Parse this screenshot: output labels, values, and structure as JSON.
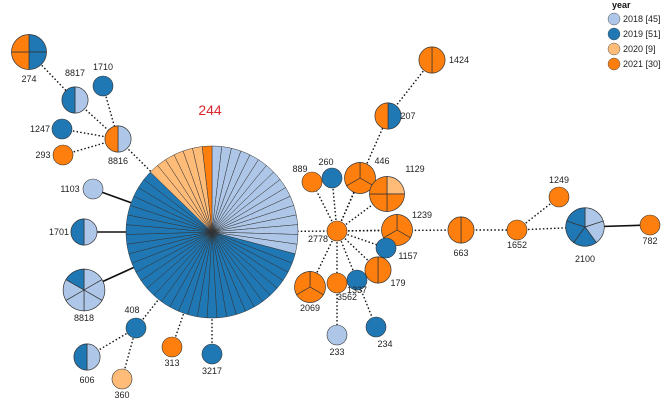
{
  "legend": {
    "title": "year",
    "items": [
      {
        "key": "2018",
        "label": "2018 [45]",
        "color": "#aec7e8"
      },
      {
        "key": "2019",
        "label": "2019 [51]",
        "color": "#1f77b4"
      },
      {
        "key": "2020",
        "label": "2020 [9]",
        "color": "#ffbb78"
      },
      {
        "key": "2021",
        "label": "2021 [30]",
        "color": "#ff7f0e"
      }
    ]
  },
  "hub_label": "244",
  "nodes": [
    {
      "id": "274",
      "label": "274",
      "counts": {
        "2018": 0,
        "2019": 2,
        "2020": 0,
        "2021": 2
      }
    },
    {
      "id": "8817",
      "label": "8817",
      "counts": {
        "2018": 1,
        "2019": 1,
        "2020": 0,
        "2021": 0
      }
    },
    {
      "id": "1710",
      "label": "1710",
      "counts": {
        "2018": 0,
        "2019": 1,
        "2020": 0,
        "2021": 0
      }
    },
    {
      "id": "1247",
      "label": "1247",
      "counts": {
        "2018": 0,
        "2019": 1,
        "2020": 0,
        "2021": 0
      }
    },
    {
      "id": "293",
      "label": "293",
      "counts": {
        "2018": 0,
        "2019": 0,
        "2020": 0,
        "2021": 1
      }
    },
    {
      "id": "8816",
      "label": "8816",
      "counts": {
        "2018": 1,
        "2019": 0,
        "2020": 0,
        "2021": 1
      }
    },
    {
      "id": "244",
      "label": "",
      "counts": {
        "2018": 16,
        "2019": 32,
        "2020": 6,
        "2021": 1
      }
    },
    {
      "id": "1103",
      "label": "1103",
      "counts": {
        "2018": 1,
        "2019": 0,
        "2020": 0,
        "2021": 0
      }
    },
    {
      "id": "1701",
      "label": "1701",
      "counts": {
        "2018": 1,
        "2019": 1,
        "2020": 0,
        "2021": 0
      }
    },
    {
      "id": "8818",
      "label": "8818",
      "counts": {
        "2018": 5,
        "2019": 1,
        "2020": 0,
        "2021": 0
      }
    },
    {
      "id": "408",
      "label": "408",
      "counts": {
        "2018": 0,
        "2019": 1,
        "2020": 0,
        "2021": 0
      }
    },
    {
      "id": "606",
      "label": "606",
      "counts": {
        "2018": 1,
        "2019": 1,
        "2020": 0,
        "2021": 0
      }
    },
    {
      "id": "360",
      "label": "360",
      "counts": {
        "2018": 0,
        "2019": 0,
        "2020": 1,
        "2021": 0
      }
    },
    {
      "id": "313",
      "label": "313",
      "counts": {
        "2018": 0,
        "2019": 0,
        "2020": 0,
        "2021": 1
      }
    },
    {
      "id": "3217",
      "label": "3217",
      "counts": {
        "2018": 0,
        "2019": 1,
        "2020": 0,
        "2021": 0
      }
    },
    {
      "id": "2778",
      "label": "2778",
      "counts": {
        "2018": 0,
        "2019": 0,
        "2020": 0,
        "2021": 1
      }
    },
    {
      "id": "889",
      "label": "889",
      "counts": {
        "2018": 0,
        "2019": 0,
        "2020": 0,
        "2021": 1
      }
    },
    {
      "id": "260",
      "label": "260",
      "counts": {
        "2018": 0,
        "2019": 1,
        "2020": 0,
        "2021": 0
      }
    },
    {
      "id": "446",
      "label": "446",
      "counts": {
        "2018": 0,
        "2019": 0,
        "2020": 0,
        "2021": 3
      }
    },
    {
      "id": "1129",
      "label": "1129",
      "counts": {
        "2018": 0,
        "2019": 0,
        "2020": 1,
        "2021": 3
      }
    },
    {
      "id": "1424",
      "label": "1424",
      "counts": {
        "2018": 0,
        "2019": 0,
        "2020": 0,
        "2021": 2
      }
    },
    {
      "id": "207",
      "label": "207",
      "counts": {
        "2018": 0,
        "2019": 1,
        "2020": 0,
        "2021": 1
      }
    },
    {
      "id": "1239",
      "label": "1239",
      "counts": {
        "2018": 0,
        "2019": 0,
        "2020": 0,
        "2021": 3
      }
    },
    {
      "id": "1157",
      "label": "1157",
      "counts": {
        "2018": 0,
        "2019": 1,
        "2020": 0,
        "2021": 0
      }
    },
    {
      "id": "179",
      "label": "179",
      "counts": {
        "2018": 0,
        "2019": 0,
        "2020": 0,
        "2021": 2
      }
    },
    {
      "id": "2069",
      "label": "2069",
      "counts": {
        "2018": 0,
        "2019": 0,
        "2020": 0,
        "2021": 3
      }
    },
    {
      "id": "3562",
      "label": "3562",
      "counts": {
        "2018": 0,
        "2019": 0,
        "2020": 0,
        "2021": 1
      }
    },
    {
      "id": "1337",
      "label": "1337",
      "counts": {
        "2018": 0,
        "2019": 1,
        "2020": 0,
        "2021": 0
      }
    },
    {
      "id": "233",
      "label": "233",
      "counts": {
        "2018": 1,
        "2019": 0,
        "2020": 0,
        "2021": 0
      }
    },
    {
      "id": "234",
      "label": "234",
      "counts": {
        "2018": 0,
        "2019": 1,
        "2020": 0,
        "2021": 0
      }
    },
    {
      "id": "663",
      "label": "663",
      "counts": {
        "2018": 0,
        "2019": 0,
        "2020": 0,
        "2021": 2
      }
    },
    {
      "id": "1652",
      "label": "1652",
      "counts": {
        "2018": 0,
        "2019": 0,
        "2020": 0,
        "2021": 1
      }
    },
    {
      "id": "1249",
      "label": "1249",
      "counts": {
        "2018": 0,
        "2019": 0,
        "2020": 0,
        "2021": 1
      }
    },
    {
      "id": "2100",
      "label": "2100",
      "counts": {
        "2018": 2,
        "2019": 3,
        "2020": 0,
        "2021": 0
      }
    },
    {
      "id": "782",
      "label": "782",
      "counts": {
        "2018": 0,
        "2019": 0,
        "2020": 0,
        "2021": 1
      }
    }
  ],
  "edges": [
    {
      "a": "274",
      "b": "8817",
      "style": "dotted"
    },
    {
      "a": "8817",
      "b": "8816",
      "style": "dotted"
    },
    {
      "a": "1710",
      "b": "8816",
      "style": "dotted"
    },
    {
      "a": "1247",
      "b": "8816",
      "style": "dotted"
    },
    {
      "a": "293",
      "b": "8816",
      "style": "dotted"
    },
    {
      "a": "8816",
      "b": "244",
      "style": "dotted"
    },
    {
      "a": "1103",
      "b": "244",
      "style": "solid"
    },
    {
      "a": "1701",
      "b": "244",
      "style": "solid"
    },
    {
      "a": "8818",
      "b": "244",
      "style": "solid"
    },
    {
      "a": "408",
      "b": "244",
      "style": "dotted"
    },
    {
      "a": "606",
      "b": "408",
      "style": "dotted"
    },
    {
      "a": "360",
      "b": "408",
      "style": "dotted"
    },
    {
      "a": "313",
      "b": "244",
      "style": "dotted"
    },
    {
      "a": "3217",
      "b": "244",
      "style": "dotted"
    },
    {
      "a": "244",
      "b": "2778",
      "style": "dotted"
    },
    {
      "a": "2778",
      "b": "889",
      "style": "dotted"
    },
    {
      "a": "2778",
      "b": "260",
      "style": "dotted"
    },
    {
      "a": "2778",
      "b": "446",
      "style": "dotted"
    },
    {
      "a": "2778",
      "b": "1129",
      "style": "dotted"
    },
    {
      "a": "2778",
      "b": "207",
      "style": "dotted"
    },
    {
      "a": "207",
      "b": "1424",
      "style": "dotted"
    },
    {
      "a": "2778",
      "b": "1239",
      "style": "dotted"
    },
    {
      "a": "2778",
      "b": "1157",
      "style": "dotted"
    },
    {
      "a": "2778",
      "b": "179",
      "style": "dotted"
    },
    {
      "a": "2778",
      "b": "2069",
      "style": "dotted"
    },
    {
      "a": "2778",
      "b": "3562",
      "style": "dotted"
    },
    {
      "a": "2778",
      "b": "1337",
      "style": "dotted"
    },
    {
      "a": "1337",
      "b": "234",
      "style": "dotted"
    },
    {
      "a": "3562",
      "b": "233",
      "style": "dotted"
    },
    {
      "a": "2778",
      "b": "663",
      "style": "dotted"
    },
    {
      "a": "663",
      "b": "1652",
      "style": "dotted"
    },
    {
      "a": "1652",
      "b": "1249",
      "style": "dotted"
    },
    {
      "a": "1652",
      "b": "2100",
      "style": "dotted"
    },
    {
      "a": "2100",
      "b": "782",
      "style": "solid"
    }
  ]
}
